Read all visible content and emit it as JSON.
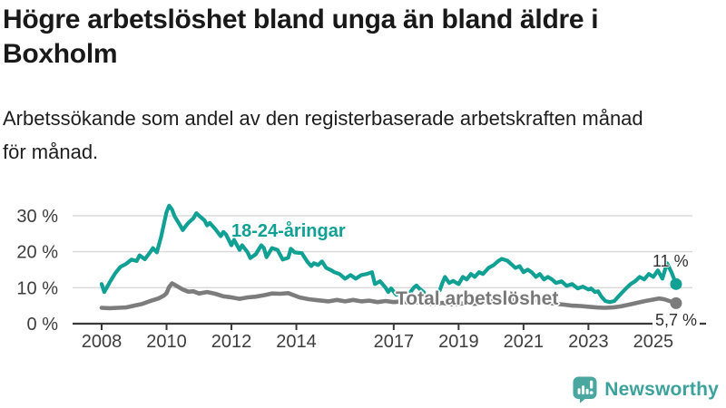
{
  "header": {
    "title": "Högre arbetslöshet bland unga än bland äldre i Boxholm",
    "title_lines": [
      "Högre arbetslöshet bland unga än bland äldre i",
      "Boxholm"
    ],
    "subtitle": "Arbetssökande som andel av den registerbaserade arbetskraften månad för månad.",
    "subtitle_lines": [
      "Arbetssökande som andel av den registerbaserade arbetskraften månad",
      "för månad."
    ]
  },
  "brand": {
    "name": "Newsworthy",
    "icon": "newsworthy-chart-bubble-icon",
    "text_color": "#3da29b",
    "icon_color": "#4aa7a0"
  },
  "chart_data": {
    "type": "line",
    "title": "Högre arbetslöshet bland unga än bland äldre i Boxholm",
    "subtitle": "Arbetssökande som andel av den registerbaserade arbetskraften månad för månad.",
    "x_axis": {
      "tick_labels": [
        "2008",
        "2010",
        "2012",
        "2014",
        "2017",
        "2019",
        "2021",
        "2023",
        "2025"
      ],
      "range": [
        2007.8,
        2026.2
      ]
    },
    "y_axis": {
      "tick_labels": [
        "0 %",
        "10 %",
        "20 %",
        "30 %"
      ],
      "range": [
        0,
        33
      ],
      "unit": "%"
    },
    "grid": true,
    "legend_position": "inline-labels",
    "points_format": "[year_decimal, percent]",
    "colors": {
      "youth": "#11a094",
      "total": "#7c7c7c",
      "gridline": "#d8d8d8",
      "axis": "#3a3a3a"
    },
    "series": [
      {
        "name": "18-24-åringar",
        "color": "#11a094",
        "end_label": "11 %",
        "end_value": 11,
        "segments": [
          [
            [
              2008.0,
              11.0
            ],
            [
              2008.08,
              8.8
            ],
            [
              2008.25,
              11.5
            ],
            [
              2008.42,
              14.0
            ],
            [
              2008.58,
              15.8
            ],
            [
              2008.75,
              16.6
            ],
            [
              2008.92,
              17.8
            ],
            [
              2009.08,
              17.4
            ],
            [
              2009.17,
              19.0
            ],
            [
              2009.33,
              17.9
            ],
            [
              2009.5,
              19.9
            ],
            [
              2009.58,
              21.0
            ],
            [
              2009.7,
              19.8
            ],
            [
              2009.83,
              24.0
            ],
            [
              2010.0,
              31.0
            ],
            [
              2010.08,
              32.8
            ],
            [
              2010.17,
              31.7
            ],
            [
              2010.25,
              29.8
            ],
            [
              2010.42,
              27.3
            ],
            [
              2010.5,
              26.0
            ],
            [
              2010.58,
              27.0
            ],
            [
              2010.67,
              28.0
            ],
            [
              2010.83,
              29.3
            ],
            [
              2010.92,
              30.7
            ],
            [
              2011.0,
              30.0
            ],
            [
              2011.17,
              28.7
            ],
            [
              2011.25,
              27.3
            ],
            [
              2011.33,
              28.0
            ],
            [
              2011.5,
              26.3
            ],
            [
              2011.67,
              24.3
            ],
            [
              2011.75,
              25.5
            ],
            [
              2011.83,
              24.8
            ],
            [
              2012.0,
              21.8
            ],
            [
              2012.08,
              23.3
            ],
            [
              2012.25,
              20.5
            ],
            [
              2012.33,
              21.8
            ],
            [
              2012.5,
              19.8
            ],
            [
              2012.58,
              18.2
            ],
            [
              2012.75,
              19.3
            ],
            [
              2012.92,
              21.8
            ],
            [
              2013.0,
              21.0
            ],
            [
              2013.08,
              18.5
            ],
            [
              2013.25,
              21.0
            ],
            [
              2013.42,
              20.5
            ],
            [
              2013.58,
              17.8
            ],
            [
              2013.75,
              18.3
            ],
            [
              2013.83,
              20.8
            ],
            [
              2013.95,
              19.8
            ],
            [
              2014.17,
              19.6
            ],
            [
              2014.33,
              17.3
            ],
            [
              2014.46,
              16.0
            ],
            [
              2014.54,
              16.8
            ],
            [
              2014.67,
              16.3
            ],
            [
              2014.79,
              17.3
            ],
            [
              2014.92,
              15.5
            ],
            [
              2015.08,
              14.8
            ],
            [
              2015.17,
              14.3
            ],
            [
              2015.33,
              13.8
            ],
            [
              2015.5,
              12.5
            ],
            [
              2015.67,
              13.5
            ],
            [
              2015.83,
              12.5
            ],
            [
              2016.0,
              13.5
            ],
            [
              2016.17,
              13.8
            ],
            [
              2016.33,
              14.3
            ],
            [
              2016.42,
              11.0
            ],
            [
              2016.58,
              11.8
            ],
            [
              2016.75,
              10.0
            ],
            [
              2016.83,
              8.8
            ],
            [
              2016.92,
              9.8
            ],
            [
              2017.08,
              8.0
            ],
            [
              2017.17,
              8.8
            ],
            [
              2017.25,
              6.2
            ]
          ],
          [
            [
              2017.51,
              8.7
            ],
            [
              2017.62,
              10.0
            ],
            [
              2017.7,
              10.6
            ],
            [
              2017.8,
              9.7
            ],
            [
              2017.93,
              8.7
            ]
          ],
          [
            [
              2018.42,
              9.3
            ],
            [
              2018.5,
              11.3
            ],
            [
              2018.58,
              13.0
            ],
            [
              2018.71,
              11.3
            ],
            [
              2018.83,
              11.9
            ],
            [
              2019.0,
              11.0
            ],
            [
              2019.13,
              13.0
            ],
            [
              2019.25,
              12.3
            ],
            [
              2019.38,
              13.8
            ],
            [
              2019.5,
              13.0
            ],
            [
              2019.63,
              14.3
            ],
            [
              2019.75,
              13.8
            ],
            [
              2019.92,
              15.5
            ],
            [
              2020.08,
              16.3
            ],
            [
              2020.21,
              17.3
            ],
            [
              2020.33,
              18.0
            ],
            [
              2020.5,
              17.5
            ],
            [
              2020.63,
              16.5
            ],
            [
              2020.75,
              15.5
            ],
            [
              2020.88,
              16.0
            ],
            [
              2021.0,
              14.3
            ],
            [
              2021.13,
              15.0
            ],
            [
              2021.25,
              14.3
            ],
            [
              2021.38,
              13.0
            ],
            [
              2021.5,
              13.8
            ],
            [
              2021.63,
              12.3
            ],
            [
              2021.75,
              13.0
            ],
            [
              2021.88,
              12.3
            ],
            [
              2022.0,
              11.3
            ],
            [
              2022.17,
              11.8
            ],
            [
              2022.33,
              10.5
            ],
            [
              2022.5,
              11.0
            ],
            [
              2022.67,
              9.8
            ],
            [
              2022.83,
              10.3
            ],
            [
              2023.0,
              9.5
            ],
            [
              2023.08,
              9.8
            ],
            [
              2023.2,
              8.8
            ],
            [
              2023.3,
              9.0
            ],
            [
              2023.4,
              7.5
            ],
            [
              2023.52,
              6.3
            ],
            [
              2023.66,
              6.0
            ],
            [
              2023.8,
              6.3
            ],
            [
              2023.97,
              8.0
            ],
            [
              2024.16,
              9.8
            ],
            [
              2024.3,
              11.0
            ],
            [
              2024.44,
              11.8
            ],
            [
              2024.58,
              13.0
            ],
            [
              2024.72,
              12.3
            ],
            [
              2024.86,
              13.8
            ],
            [
              2025.0,
              13.0
            ],
            [
              2025.14,
              14.8
            ],
            [
              2025.28,
              12.5
            ],
            [
              2025.42,
              16.8
            ],
            [
              2025.56,
              14.3
            ],
            [
              2025.7,
              11.0
            ]
          ]
        ]
      },
      {
        "name": "Total arbetslöshet",
        "color": "#7c7c7c",
        "end_label": "5,7 %",
        "end_value": 5.7,
        "segments": [
          [
            [
              2008.0,
              4.4
            ],
            [
              2008.25,
              4.3
            ],
            [
              2008.5,
              4.4
            ],
            [
              2008.75,
              4.5
            ],
            [
              2009.0,
              5.0
            ],
            [
              2009.25,
              5.5
            ],
            [
              2009.5,
              6.3
            ],
            [
              2009.75,
              7.0
            ],
            [
              2009.92,
              7.8
            ],
            [
              2010.0,
              8.5
            ],
            [
              2010.08,
              10.2
            ],
            [
              2010.17,
              11.2
            ],
            [
              2010.33,
              10.4
            ],
            [
              2010.5,
              9.5
            ],
            [
              2010.67,
              8.9
            ],
            [
              2010.83,
              9.0
            ],
            [
              2011.0,
              8.4
            ],
            [
              2011.25,
              8.8
            ],
            [
              2011.5,
              8.3
            ],
            [
              2011.75,
              7.6
            ],
            [
              2012.0,
              7.3
            ],
            [
              2012.25,
              6.9
            ],
            [
              2012.5,
              7.3
            ],
            [
              2012.75,
              7.5
            ],
            [
              2013.0,
              7.9
            ],
            [
              2013.25,
              8.4
            ],
            [
              2013.5,
              8.3
            ],
            [
              2013.75,
              8.5
            ],
            [
              2014.1,
              7.3
            ],
            [
              2014.38,
              6.8
            ],
            [
              2014.67,
              6.5
            ],
            [
              2015.0,
              6.2
            ],
            [
              2015.25,
              6.6
            ],
            [
              2015.5,
              6.2
            ],
            [
              2015.75,
              6.6
            ],
            [
              2016.0,
              6.2
            ],
            [
              2016.25,
              6.4
            ],
            [
              2016.5,
              6.0
            ],
            [
              2016.75,
              6.3
            ],
            [
              2017.0,
              6.0
            ],
            [
              2017.25,
              6.2
            ],
            [
              2017.5,
              5.8
            ],
            [
              2017.75,
              6.0
            ],
            [
              2018.0,
              5.6
            ],
            [
              2018.25,
              5.5
            ],
            [
              2018.5,
              5.8
            ],
            [
              2018.75,
              5.4
            ],
            [
              2019.0,
              5.5
            ],
            [
              2019.25,
              5.8
            ],
            [
              2019.5,
              5.5
            ],
            [
              2019.75,
              5.9
            ],
            [
              2020.0,
              6.3
            ],
            [
              2020.25,
              6.8
            ],
            [
              2020.5,
              7.0
            ],
            [
              2020.75,
              6.8
            ],
            [
              2021.0,
              6.9
            ],
            [
              2021.25,
              6.5
            ],
            [
              2021.5,
              6.3
            ],
            [
              2021.75,
              5.9
            ],
            [
              2022.0,
              5.5
            ],
            [
              2022.25,
              5.3
            ],
            [
              2022.5,
              5.0
            ],
            [
              2022.75,
              4.9
            ],
            [
              2023.0,
              4.7
            ],
            [
              2023.25,
              4.5
            ],
            [
              2023.5,
              4.4
            ],
            [
              2023.75,
              4.5
            ],
            [
              2024.0,
              4.8
            ],
            [
              2024.25,
              5.3
            ],
            [
              2024.5,
              5.8
            ],
            [
              2024.75,
              6.3
            ],
            [
              2025.0,
              6.7
            ],
            [
              2025.17,
              7.0
            ],
            [
              2025.33,
              6.8
            ],
            [
              2025.5,
              6.3
            ],
            [
              2025.7,
              5.7
            ]
          ]
        ]
      }
    ]
  }
}
